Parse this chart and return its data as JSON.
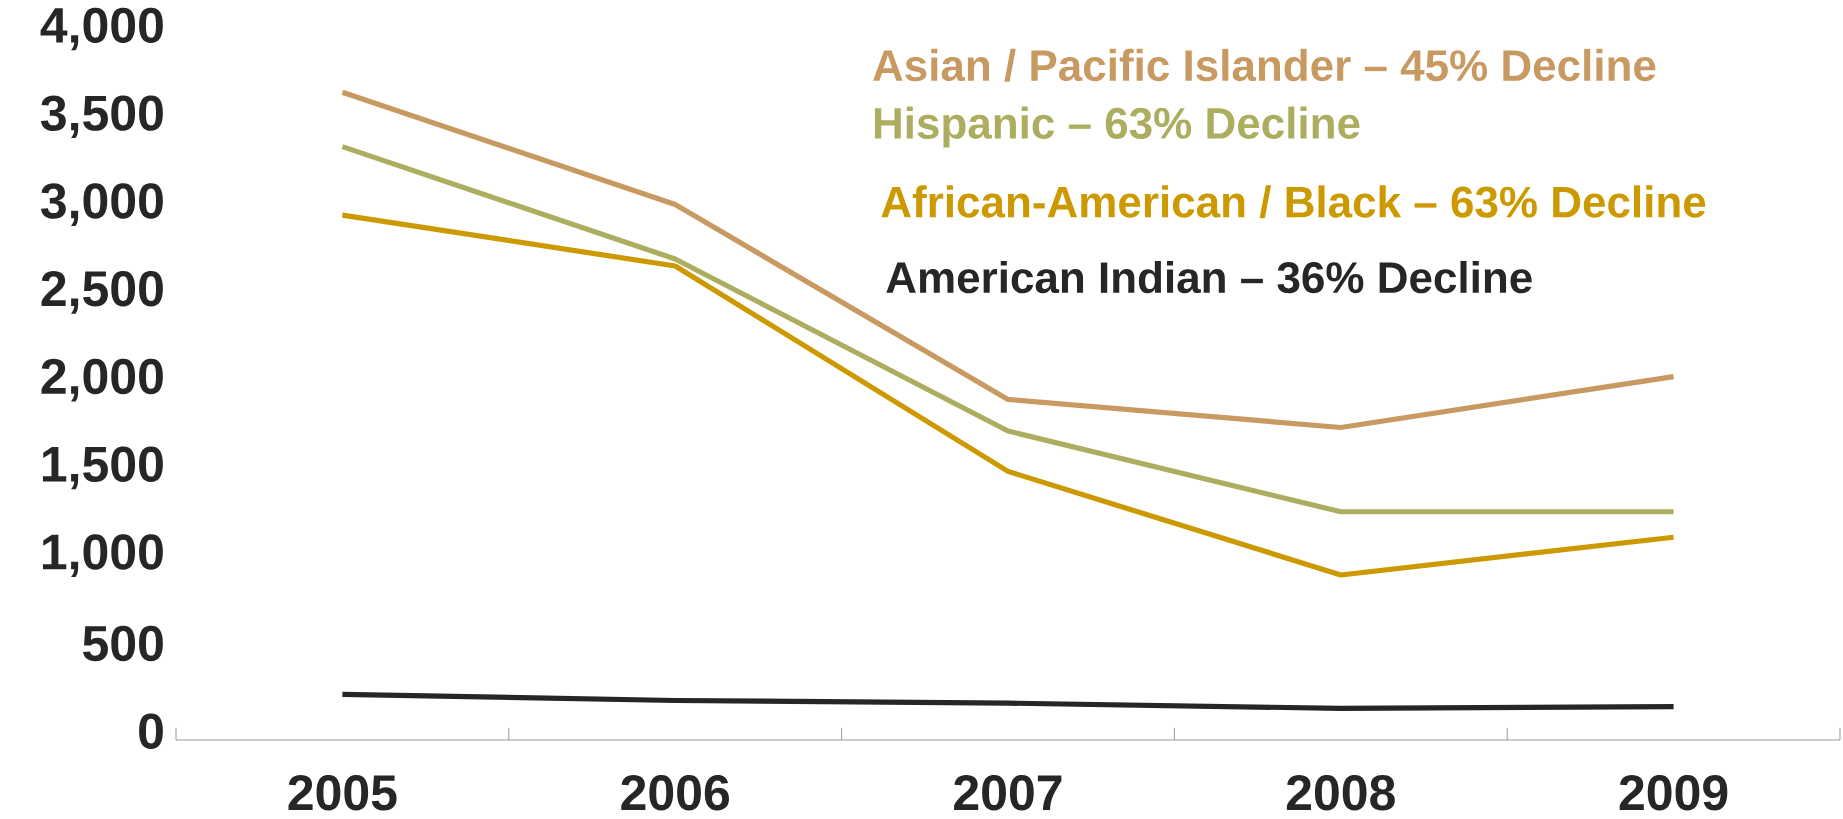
{
  "chart_data": {
    "type": "line",
    "categories": [
      "2005",
      "2006",
      "2007",
      "2008",
      "2009"
    ],
    "ylim": [
      -50,
      4000
    ],
    "yticks": [
      0,
      500,
      {
        "value": 1000,
        "label": "1,000"
      },
      {
        "value": 1500,
        "label": "1,500"
      },
      {
        "value": 2000,
        "label": "2,000"
      },
      {
        "value": 2500,
        "label": "2,500"
      },
      {
        "value": 3000,
        "label": "3,000"
      },
      {
        "value": 3500,
        "label": "3,500"
      },
      {
        "value": 4000,
        "label": "4,000"
      }
    ],
    "grid": false,
    "marker": "none",
    "line_style": "solid",
    "series": [
      {
        "name": "Asian / Pacific Islander – 45% Decline",
        "color": "#c89a62",
        "values": [
          3640,
          3000,
          1890,
          1730,
          2020
        ]
      },
      {
        "name": "Hispanic – 63% Decline",
        "color": "#adad60",
        "values": [
          3330,
          2690,
          1710,
          1250,
          1250
        ]
      },
      {
        "name": "African-American / Black – 63% Decline",
        "color": "#cc9900",
        "values": [
          2940,
          2650,
          1480,
          890,
          1105
        ]
      },
      {
        "name": "American Indian – 36% Decline",
        "color": "#262626",
        "values": [
          210,
          175,
          160,
          130,
          140
        ]
      }
    ]
  }
}
